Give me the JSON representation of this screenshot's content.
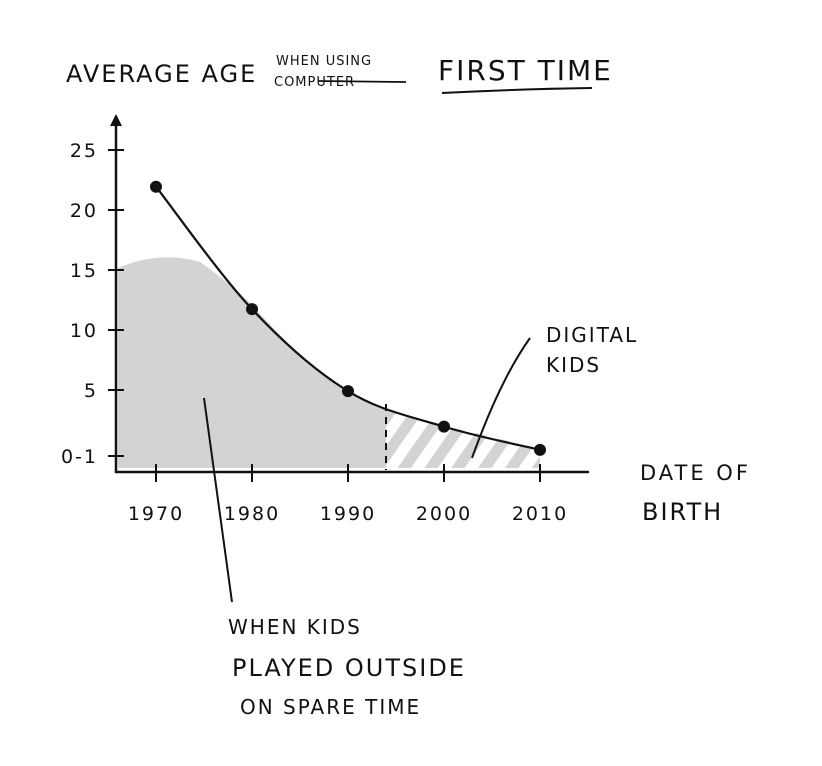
{
  "chart_data": {
    "type": "line",
    "title": {
      "lead": "AVERAGE AGE",
      "small_line1": "WHEN USING",
      "small_line2": "COMPUTER",
      "main": "FIRST TIME"
    },
    "xlabel_line1": "DATE OF",
    "xlabel_line2": "BIRTH",
    "x_ticks": [
      "1970",
      "1980",
      "1990",
      "2000",
      "2010"
    ],
    "y_ticks": [
      "0-1",
      "5",
      "10",
      "15",
      "20",
      "25"
    ],
    "x": [
      1970,
      1980,
      1990,
      2000,
      2010
    ],
    "values": [
      22,
      12,
      5.3,
      2.4,
      0.5
    ],
    "xlim": [
      1966,
      2015
    ],
    "ylim": [
      -1,
      28
    ],
    "grid": false,
    "annotations": {
      "digital_kids_line1": "DIGITAL",
      "digital_kids_line2": "KIDS",
      "outside_line1": "WHEN KIDS",
      "outside_line2": "PLAYED OUTSIDE",
      "outside_line3": "ON SPARE TIME"
    },
    "colors": {
      "ink": "#111111",
      "shade": "#d3d3d3"
    }
  }
}
